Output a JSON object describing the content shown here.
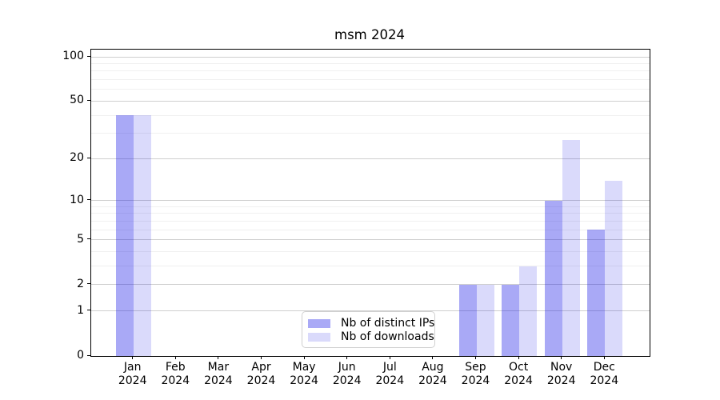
{
  "title": "msm 2024",
  "chart_data": {
    "type": "bar",
    "title": "msm 2024",
    "categories": [
      "Jan",
      "Feb",
      "Mar",
      "Apr",
      "May",
      "Jun",
      "Jul",
      "Aug",
      "Sep",
      "Oct",
      "Nov",
      "Dec"
    ],
    "x_year_label": "2024",
    "series": [
      {
        "name": "Nb of distinct IPs",
        "color": "rgba(10,10,230,0.35)",
        "values": [
          40,
          0,
          0,
          0,
          0,
          0,
          0,
          0,
          2,
          2,
          10,
          6
        ]
      },
      {
        "name": "Nb of downloads",
        "color": "rgba(10,10,230,0.15)",
        "values": [
          40,
          0,
          0,
          0,
          0,
          0,
          0,
          0,
          2,
          3,
          27,
          14
        ]
      }
    ],
    "y_axis": {
      "scale": "log1p",
      "ticks": [
        0,
        1,
        2,
        5,
        10,
        20,
        50,
        100
      ],
      "minor_ticks": [
        3,
        4,
        6,
        7,
        8,
        9,
        30,
        40,
        60,
        70,
        80,
        90
      ],
      "range": [
        0,
        112
      ]
    },
    "grid": true,
    "legend_position": "lower center"
  },
  "colors": {
    "grid_major": "#cfcfcf",
    "grid_minor": "#f0f0f0",
    "axis": "#000000",
    "background": "#ffffff"
  }
}
